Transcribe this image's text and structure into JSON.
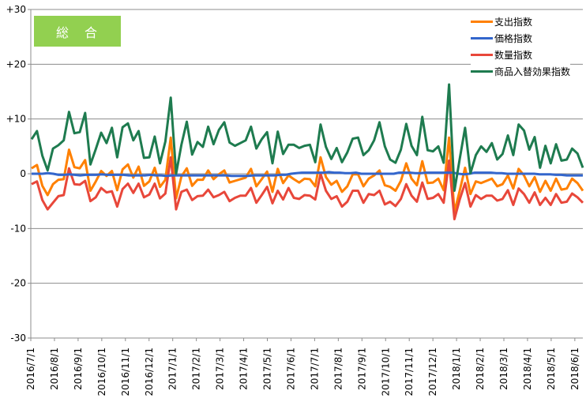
{
  "chart_data": {
    "type": "line",
    "title": "総　合",
    "xlabel": "",
    "ylabel": "",
    "ylim": [
      -30,
      30
    ],
    "yticks": [
      30,
      20,
      10,
      0,
      -10,
      -20,
      -30
    ],
    "ytick_labels": [
      "+30",
      "+20",
      "+10",
      "0",
      "-10",
      "-20",
      "-30"
    ],
    "grid": true,
    "legend_position": "top-right",
    "x_start": "2016/7/1",
    "x_frequency": "weekly",
    "xtick_labels": [
      "2016/7/1",
      "2016/8/1",
      "2016/9/1",
      "2016/10/1",
      "2016/11/1",
      "2016/12/1",
      "2017/1/1",
      "2017/2/1",
      "2017/3/1",
      "2017/4/1",
      "2017/5/1",
      "2017/6/1",
      "2017/7/1",
      "2017/8/1",
      "2017/9/1",
      "2017/10/1",
      "2017/11/1",
      "2017/12/1",
      "2018/1/1",
      "2018/2/1",
      "2018/3/1",
      "2018/4/1",
      "2018/5/1",
      "2018/6/1"
    ],
    "series": [
      {
        "name": "支出指数",
        "color": "#ff8000",
        "values": [
          1.0,
          1.6,
          -2.2,
          -3.9,
          -1.9,
          -1.1,
          -1.0,
          4.4,
          1.2,
          1.0,
          2.5,
          -3.1,
          -1.4,
          0.5,
          -0.4,
          0.5,
          -3.0,
          0.8,
          1.7,
          -0.7,
          1.3,
          -2.2,
          -1.4,
          1.1,
          -2.4,
          -1.1,
          6.6,
          -4.5,
          -0.5,
          1.0,
          -2.2,
          -1.1,
          -1.1,
          0.6,
          -1.0,
          -0.1,
          0.6,
          -1.6,
          -1.3,
          -1.0,
          -0.7,
          0.9,
          -2.3,
          -1.0,
          0.4,
          -3.3,
          0.9,
          -1.7,
          -0.3,
          -1.0,
          -1.6,
          -0.9,
          -1.0,
          -2.3,
          3.0,
          -0.6,
          -2.0,
          -1.3,
          -3.3,
          -2.3,
          -0.1,
          -0.1,
          -2.3,
          -0.9,
          -0.3,
          0.6,
          -2.1,
          -2.4,
          -3.1,
          -1.3,
          1.9,
          -0.9,
          -2.1,
          2.3,
          -1.7,
          -1.6,
          -0.9,
          -3.0,
          6.6,
          -7.0,
          -3.1,
          1.1,
          -3.7,
          -1.4,
          -1.7,
          -1.3,
          -0.9,
          -2.3,
          -1.9,
          -0.3,
          -2.7,
          0.9,
          -0.3,
          -2.3,
          -0.6,
          -3.3,
          -1.3,
          -3.1,
          -0.9,
          -2.9,
          -2.7,
          -0.9,
          -1.7,
          -3.1
        ]
      },
      {
        "name": "価格指数",
        "color": "#3366cc",
        "values": [
          0,
          0,
          0,
          0.1,
          0,
          -0.2,
          -0.2,
          -0.1,
          -0.2,
          -0.3,
          -0.2,
          -0.2,
          -0.2,
          -0.1,
          -0.2,
          -0.2,
          -0.2,
          -0.2,
          -0.3,
          -0.3,
          -0.3,
          -0.3,
          -0.2,
          -0.3,
          -0.3,
          -0.4,
          -0.3,
          -0.3,
          -0.3,
          -0.3,
          -0.3,
          -0.3,
          -0.3,
          -0.3,
          -0.3,
          -0.3,
          -0.3,
          -0.4,
          -0.4,
          -0.4,
          -0.4,
          -0.3,
          -0.3,
          -0.3,
          -0.3,
          -0.3,
          -0.2,
          -0.2,
          0,
          0.1,
          0.2,
          0.2,
          0.2,
          0.2,
          0.2,
          0.3,
          0.2,
          0.2,
          0.1,
          0.1,
          0.2,
          0,
          0,
          0,
          0,
          0,
          0,
          0,
          0.2,
          0.2,
          0.2,
          0.1,
          0.1,
          0.2,
          0.2,
          0.2,
          0.2,
          0.2,
          0.2,
          0,
          -0.1,
          0,
          0.2,
          0.2,
          0.2,
          0.2,
          0.1,
          0.1,
          0,
          0,
          0,
          0,
          0,
          0,
          -0.1,
          -0.1,
          -0.1,
          -0.2,
          -0.2,
          -0.3,
          -0.3,
          -0.3,
          -0.3
        ]
      },
      {
        "name": "数量指数",
        "color": "#e8473a",
        "values": [
          -1.9,
          -1.4,
          -4.8,
          -6.5,
          -5.3,
          -4.1,
          -3.9,
          1.0,
          -1.9,
          -2.0,
          -1.3,
          -5.0,
          -4.3,
          -2.6,
          -3.4,
          -3.2,
          -6.0,
          -2.8,
          -1.8,
          -3.5,
          -1.8,
          -4.3,
          -3.8,
          -1.8,
          -4.5,
          -3.6,
          3.0,
          -6.5,
          -3.3,
          -2.9,
          -4.8,
          -4.1,
          -4.0,
          -2.9,
          -4.3,
          -3.9,
          -3.3,
          -5.0,
          -4.4,
          -4.0,
          -4.0,
          -2.6,
          -5.3,
          -3.9,
          -2.4,
          -5.4,
          -3.1,
          -4.7,
          -2.6,
          -4.4,
          -4.6,
          -3.9,
          -4.0,
          -4.7,
          0,
          -3.1,
          -4.6,
          -4.1,
          -6.0,
          -5.1,
          -3.1,
          -3.1,
          -5.3,
          -3.7,
          -3.9,
          -3.1,
          -5.6,
          -5.1,
          -5.9,
          -4.6,
          -1.9,
          -4.0,
          -5.1,
          -1.6,
          -4.6,
          -4.4,
          -3.7,
          -5.3,
          2.4,
          -8.3,
          -4.7,
          -1.7,
          -6.0,
          -3.9,
          -4.6,
          -4.0,
          -4.0,
          -4.9,
          -4.6,
          -3.0,
          -5.7,
          -2.7,
          -3.7,
          -5.3,
          -3.4,
          -5.7,
          -4.4,
          -5.7,
          -3.7,
          -5.3,
          -5.1,
          -3.6,
          -4.3,
          -5.3
        ]
      },
      {
        "name": "商品入替効果指数",
        "color": "#1e7b4f",
        "values": [
          6.3,
          7.8,
          3.3,
          0.6,
          4.6,
          5.2,
          6.1,
          11.3,
          7.4,
          7.6,
          11.1,
          1.7,
          4.5,
          7.5,
          5.6,
          8.4,
          3.0,
          8.5,
          9.2,
          6.1,
          7.8,
          2.9,
          3.0,
          6.8,
          1.9,
          5.9,
          13.9,
          0,
          5.3,
          9.5,
          3.5,
          5.8,
          4.9,
          8.6,
          5.4,
          8.0,
          9.4,
          5.7,
          5.1,
          5.6,
          6.1,
          8.6,
          4.6,
          6.3,
          7.6,
          1.9,
          7.7,
          3.6,
          5.3,
          5.3,
          4.7,
          5.1,
          5.3,
          2.1,
          9.0,
          4.9,
          2.7,
          4.7,
          2.1,
          3.9,
          6.4,
          6.6,
          3.4,
          4.3,
          6.1,
          9.4,
          5.0,
          2.6,
          2.0,
          4.4,
          9.1,
          5.1,
          3.4,
          10.4,
          4.3,
          4.1,
          5.0,
          2.0,
          16.3,
          -3.1,
          2.7,
          8.4,
          0.1,
          3.4,
          5.0,
          4.0,
          5.6,
          2.6,
          3.6,
          7.0,
          3.4,
          9.0,
          7.9,
          4.4,
          6.7,
          1.1,
          5.1,
          1.9,
          5.4,
          2.4,
          2.6,
          4.6,
          3.7,
          1.1
        ]
      }
    ]
  }
}
